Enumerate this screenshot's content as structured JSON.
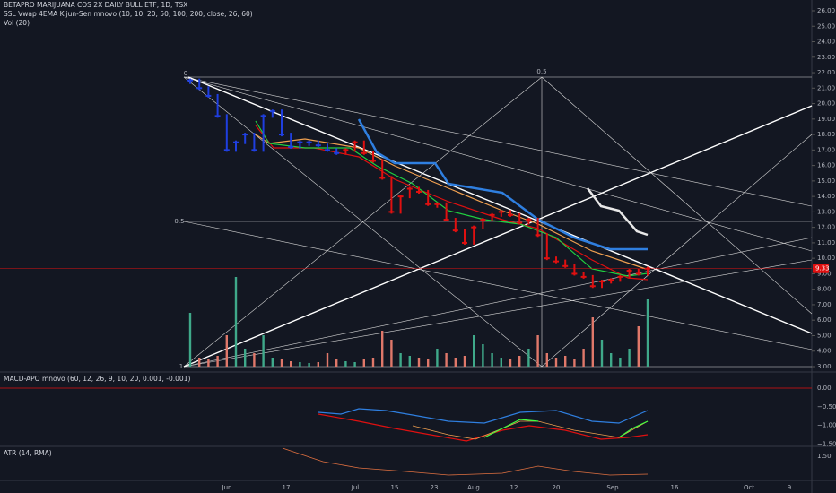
{
  "header": {
    "title": "BETAPRO MARIJUANA COS 2X DAILY BULL ETF, 1D, TSX",
    "indicator": "SSL Vwap 4EMA Kijun-Sen mnovo (10, 10, 20, 50, 100, 200, close, 26, 60)",
    "volume": "Vol (20)"
  },
  "chart_data": {
    "type": "candlestick",
    "ylim": [
      3,
      26
    ],
    "yticks": [
      {
        "value": 26,
        "label": "26.00"
      },
      {
        "value": 25,
        "label": "25.00"
      },
      {
        "value": 24,
        "label": "24.00"
      },
      {
        "value": 23,
        "label": "23.00"
      },
      {
        "value": 22,
        "label": "22.00"
      },
      {
        "value": 21,
        "label": "21.00"
      },
      {
        "value": 20,
        "label": "20.00"
      },
      {
        "value": 19,
        "label": "19.00"
      },
      {
        "value": 18,
        "label": "18.00"
      },
      {
        "value": 17,
        "label": "17.00"
      },
      {
        "value": 16,
        "label": "16.00"
      },
      {
        "value": 15,
        "label": "15.00"
      },
      {
        "value": 14,
        "label": "14.00"
      },
      {
        "value": 13,
        "label": "13.00"
      },
      {
        "value": 12,
        "label": "12.00"
      },
      {
        "value": 11,
        "label": "11.00"
      },
      {
        "value": 10,
        "label": "10.00"
      },
      {
        "value": 9,
        "label": "9.00"
      },
      {
        "value": 8,
        "label": "8.00"
      },
      {
        "value": 7,
        "label": "7.00"
      },
      {
        "value": 6,
        "label": "6.00"
      },
      {
        "value": 5,
        "label": "5.00"
      },
      {
        "value": 4,
        "label": "4.00"
      },
      {
        "value": 3,
        "label": "3.00"
      }
    ],
    "last_price": 9.33,
    "colors": {
      "up": "#1f3fe0",
      "down": "#e01010",
      "volume_up": "#3fa98a",
      "volume_down": "#e0786a"
    },
    "values": [
      21.5,
      21.0,
      20.5,
      19.2,
      17.0,
      17.5,
      18.0,
      17.0,
      19.2,
      19.5,
      18.0,
      17.2,
      17.5,
      17.5,
      17.3,
      17.0,
      16.8,
      17.0,
      17.5,
      16.8,
      16.3,
      15.2,
      13.0,
      14.0,
      14.5,
      14.3,
      13.5,
      13.5,
      12.5,
      11.8,
      11.0,
      12.0,
      12.5,
      12.8,
      13.0,
      12.8,
      12.3,
      12.5,
      11.5,
      10.0,
      9.8,
      9.5,
      9.0,
      8.8,
      8.2,
      8.5,
      8.6,
      8.8,
      9.2,
      9.0,
      9.33
    ],
    "volumes": [
      60,
      10,
      8,
      12,
      35,
      100,
      20,
      15,
      35,
      10,
      8,
      6,
      5,
      4,
      5,
      15,
      8,
      6,
      5,
      8,
      10,
      40,
      30,
      15,
      12,
      10,
      8,
      20,
      15,
      10,
      12,
      35,
      25,
      15,
      10,
      8,
      12,
      20,
      35,
      15,
      10,
      12,
      8,
      20,
      55,
      30,
      15,
      10,
      20,
      45,
      75
    ],
    "fib_labels": [
      "0",
      "0.5",
      "0.5",
      "1"
    ],
    "x_labels": [
      "Jun",
      "17",
      "Jul",
      "15",
      "23",
      "Aug",
      "12",
      "20",
      "Sep",
      "16",
      "Oct",
      "9"
    ]
  },
  "macd": {
    "title": "MACD-APO mnovo (60, 12, 26, 9, 10, 20, 0.001, -0.001)",
    "yticks": [
      {
        "value": 0,
        "label": "0.00"
      },
      {
        "value": -0.5,
        "label": "−0.50"
      },
      {
        "value": -1,
        "label": "−1.00"
      },
      {
        "value": -1.5,
        "label": "−1.50"
      }
    ]
  },
  "atr": {
    "title": "ATR (14, RMA)",
    "yticks": [
      {
        "value": 1.5,
        "label": "1.50"
      }
    ]
  }
}
